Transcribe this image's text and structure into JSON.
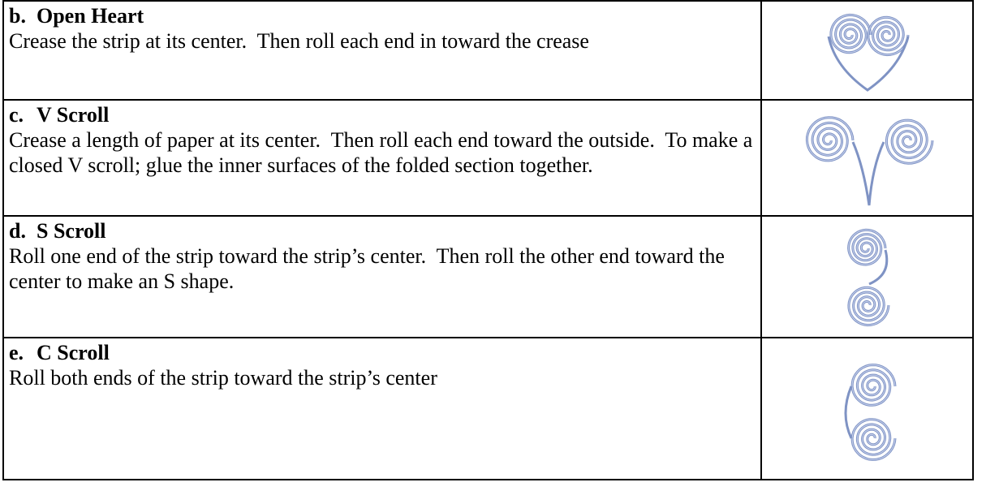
{
  "table": {
    "rows": [
      {
        "label": "b.",
        "title": "Open Heart",
        "text": "Crease the strip at its center.  Then roll each end in toward the crease"
      },
      {
        "label": "c.",
        "title": "V Scroll",
        "text": "Crease a length of paper at its center.  Then roll each end toward the outside.  To make a closed V scroll; glue the inner surfaces of the folded section together."
      },
      {
        "label": "d.",
        "title": "S Scroll",
        "text": "Roll one end of the strip toward the strip’s center.  Then roll the other end toward the center to make an S shape."
      },
      {
        "label": "e.",
        "title": "C Scroll",
        "text": "Roll both ends of the strip toward the strip’s center"
      }
    ]
  }
}
